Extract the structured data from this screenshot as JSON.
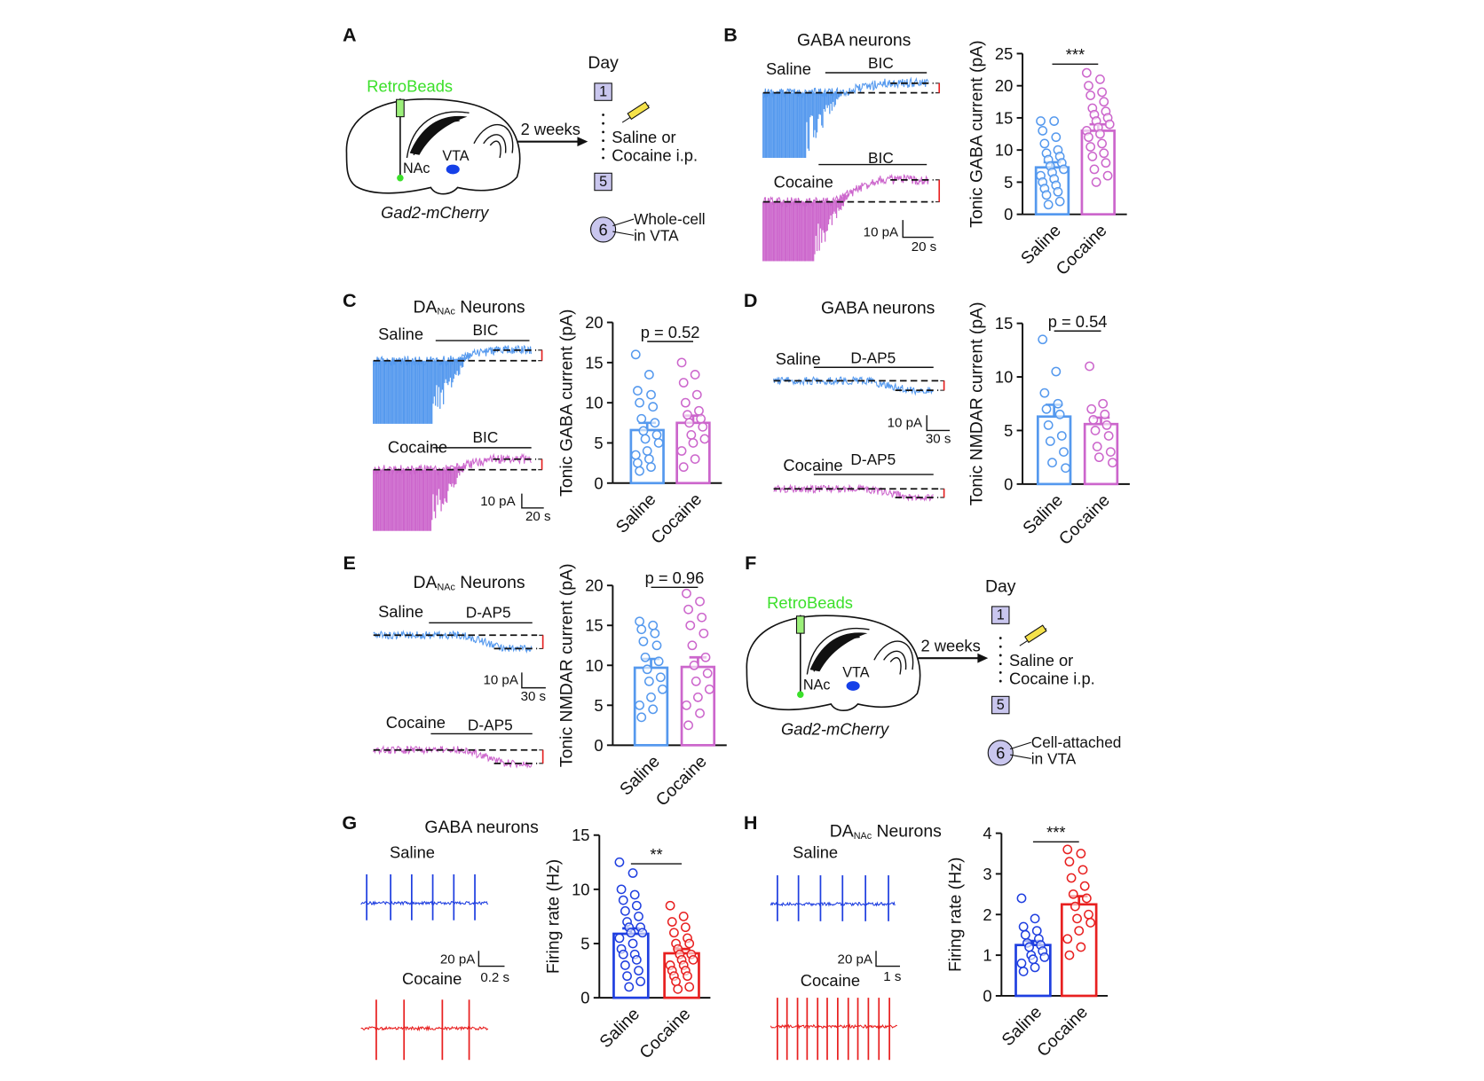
{
  "panel_labels": [
    "A",
    "B",
    "C",
    "D",
    "E",
    "F",
    "G",
    "H"
  ],
  "schematics": [
    {
      "tracer": "RetroBeads",
      "regions": [
        "NAc",
        "VTA"
      ],
      "mouse": "Gad2-mCherry",
      "interval": "2 weeks",
      "day_label": "Day",
      "days": [
        "1",
        "5",
        "6"
      ],
      "treatment": [
        "Saline or",
        "Cocaine i.p."
      ],
      "recording": [
        "Whole-cell",
        "in VTA"
      ]
    },
    {
      "tracer": "RetroBeads",
      "regions": [
        "NAc",
        "VTA"
      ],
      "mouse": "Gad2-mCherry",
      "interval": "2 weeks",
      "day_label": "Day",
      "days": [
        "1",
        "5",
        "6"
      ],
      "treatment": [
        "Saline or",
        "Cocaine i.p."
      ],
      "recording": [
        "Cell-attached",
        "in VTA"
      ]
    }
  ],
  "traces": [
    {
      "title": "GABA neurons",
      "conditions": [
        "Saline",
        "Cocaine"
      ],
      "drug": "BIC",
      "scale": [
        "10 pA",
        "20 s"
      ]
    },
    {
      "title_parts": [
        "DA",
        "NAc",
        "Neurons"
      ],
      "conditions": [
        "Saline",
        "Cocaine"
      ],
      "drug": "BIC",
      "scale": [
        "10 pA",
        "20 s"
      ]
    },
    {
      "title": "GABA neurons",
      "conditions": [
        "Saline",
        "Cocaine"
      ],
      "drug": "D-AP5",
      "scale": [
        "10 pA",
        "30 s"
      ]
    },
    {
      "title_parts": [
        "DA",
        "NAc",
        "Neurons"
      ],
      "conditions": [
        "Saline",
        "Cocaine"
      ],
      "drug": "D-AP5",
      "scale": [
        "10 pA",
        "30 s"
      ]
    },
    {
      "title": "GABA neurons",
      "conditions": [
        "Saline",
        "Cocaine"
      ],
      "scale": [
        "20 pA",
        "0.2 s"
      ]
    },
    {
      "title_parts": [
        "DA",
        "NAc",
        "Neurons"
      ],
      "conditions": [
        "Saline",
        "Cocaine"
      ],
      "scale": [
        "20 pA",
        "1 s"
      ]
    }
  ],
  "chart_data": [
    {
      "type": "bar",
      "ylabel": "Tonic GABA current (pA)",
      "categories": [
        "Saline",
        "Cocaine"
      ],
      "colors": [
        "#5599ee",
        "#cc66cc"
      ],
      "values": [
        7.3,
        13
      ],
      "errors": [
        0.8,
        1
      ],
      "annotation": "***",
      "ylim": [
        0,
        25
      ],
      "yticks": [
        0,
        5,
        10,
        15,
        20,
        25
      ],
      "points": [
        [
          14.5,
          14.5,
          13,
          12,
          11,
          10,
          9.5,
          9,
          8.5,
          8,
          7.5,
          7,
          6.5,
          6,
          5.5,
          5,
          4.5,
          4,
          3.5,
          3,
          2,
          1.5
        ],
        [
          22,
          21,
          20,
          19,
          18.5,
          17.5,
          16.5,
          16,
          15.5,
          15,
          14.5,
          14,
          13.5,
          13,
          12.5,
          12,
          11,
          10.5,
          9.5,
          9,
          8,
          7,
          6,
          5
        ]
      ]
    },
    {
      "type": "bar",
      "ylabel": "Tonic GABA current (pA)",
      "categories": [
        "Saline",
        "Cocaine"
      ],
      "colors": [
        "#5599ee",
        "#cc66cc"
      ],
      "values": [
        6.6,
        7.5
      ],
      "errors": [
        0.9,
        0.9
      ],
      "annotation": "p = 0.52",
      "ylim": [
        0,
        20
      ],
      "yticks": [
        0,
        5,
        10,
        15,
        20
      ],
      "points": [
        [
          16,
          13.5,
          11.5,
          11,
          10,
          9.5,
          8,
          7.5,
          6.5,
          6,
          5.5,
          5,
          4,
          3.5,
          3,
          2.5,
          2,
          1.5
        ],
        [
          15,
          13.5,
          12.5,
          11,
          10,
          9,
          8.5,
          8,
          7.5,
          7,
          6,
          5.5,
          5,
          4,
          3,
          2
        ]
      ]
    },
    {
      "type": "bar",
      "ylabel": "Tonic NMDAR current (pA)",
      "categories": [
        "Saline",
        "Cocaine"
      ],
      "colors": [
        "#5599ee",
        "#cc66cc"
      ],
      "values": [
        6.3,
        5.6
      ],
      "errors": [
        1.1,
        0.6
      ],
      "annotation": "p = 0.54",
      "ylim": [
        0,
        15
      ],
      "yticks": [
        0,
        5,
        10,
        15
      ],
      "points": [
        [
          13.5,
          10.5,
          8.5,
          7.5,
          7,
          6.5,
          5.5,
          4.5,
          4,
          3,
          2,
          1.5
        ],
        [
          11,
          7.5,
          7,
          6.5,
          6,
          5.5,
          5,
          4.5,
          3.5,
          3,
          2.5,
          2
        ]
      ]
    },
    {
      "type": "bar",
      "ylabel": "Tonic NMDAR current (pA)",
      "categories": [
        "Saline",
        "Cocaine"
      ],
      "colors": [
        "#5599ee",
        "#cc66cc"
      ],
      "values": [
        9.7,
        9.8
      ],
      "errors": [
        1.1,
        1.2
      ],
      "annotation": "p = 0.96",
      "ylim": [
        0,
        20
      ],
      "yticks": [
        0,
        5,
        10,
        15,
        20
      ],
      "points": [
        [
          15.5,
          15,
          14.5,
          14,
          13,
          12.5,
          11,
          10.5,
          9.5,
          8.5,
          8,
          7,
          6,
          5,
          4.5,
          3.5
        ],
        [
          19,
          18,
          17,
          16,
          15,
          14,
          12.5,
          11,
          10,
          9,
          8,
          7,
          6,
          5,
          4,
          2.5
        ]
      ]
    },
    {
      "type": "bar",
      "ylabel": "Firing rate (Hz)",
      "categories": [
        "Saline",
        "Cocaine"
      ],
      "colors": [
        "#1f3fe0",
        "#e82020"
      ],
      "values": [
        5.9,
        4.1
      ],
      "errors": [
        0.5,
        0.4
      ],
      "annotation": "**",
      "ylim": [
        0,
        15
      ],
      "yticks": [
        0,
        5,
        10,
        15
      ],
      "points": [
        [
          12.5,
          11.5,
          10,
          9.5,
          9,
          8.5,
          8,
          7.5,
          7,
          6.5,
          6.5,
          6,
          6,
          5.5,
          5,
          4.5,
          4,
          4,
          3.5,
          3,
          2.5,
          2,
          1.5,
          1
        ],
        [
          8.5,
          7.5,
          7,
          6.5,
          6,
          5.5,
          5,
          5,
          4.5,
          4,
          4,
          3.5,
          3.5,
          3,
          3,
          2.5,
          2.5,
          2,
          2,
          1.5,
          1,
          0.8
        ]
      ]
    },
    {
      "type": "bar",
      "ylabel": "Firing rate (Hz)",
      "categories": [
        "Saline",
        "Cocaine"
      ],
      "colors": [
        "#1f3fe0",
        "#e82020"
      ],
      "values": [
        1.25,
        2.25
      ],
      "errors": [
        0.1,
        0.2
      ],
      "annotation": "***",
      "ylim": [
        0,
        4
      ],
      "yticks": [
        0,
        1,
        2,
        3,
        4
      ],
      "points": [
        [
          2.4,
          1.9,
          1.7,
          1.6,
          1.5,
          1.4,
          1.3,
          1.25,
          1.2,
          1.1,
          1.0,
          0.95,
          0.9,
          0.8,
          0.7,
          0.6
        ],
        [
          3.6,
          3.5,
          3.3,
          3.1,
          2.9,
          2.7,
          2.5,
          2.4,
          2.2,
          2.0,
          1.9,
          1.8,
          1.6,
          1.4,
          1.2,
          1.0
        ]
      ]
    }
  ]
}
